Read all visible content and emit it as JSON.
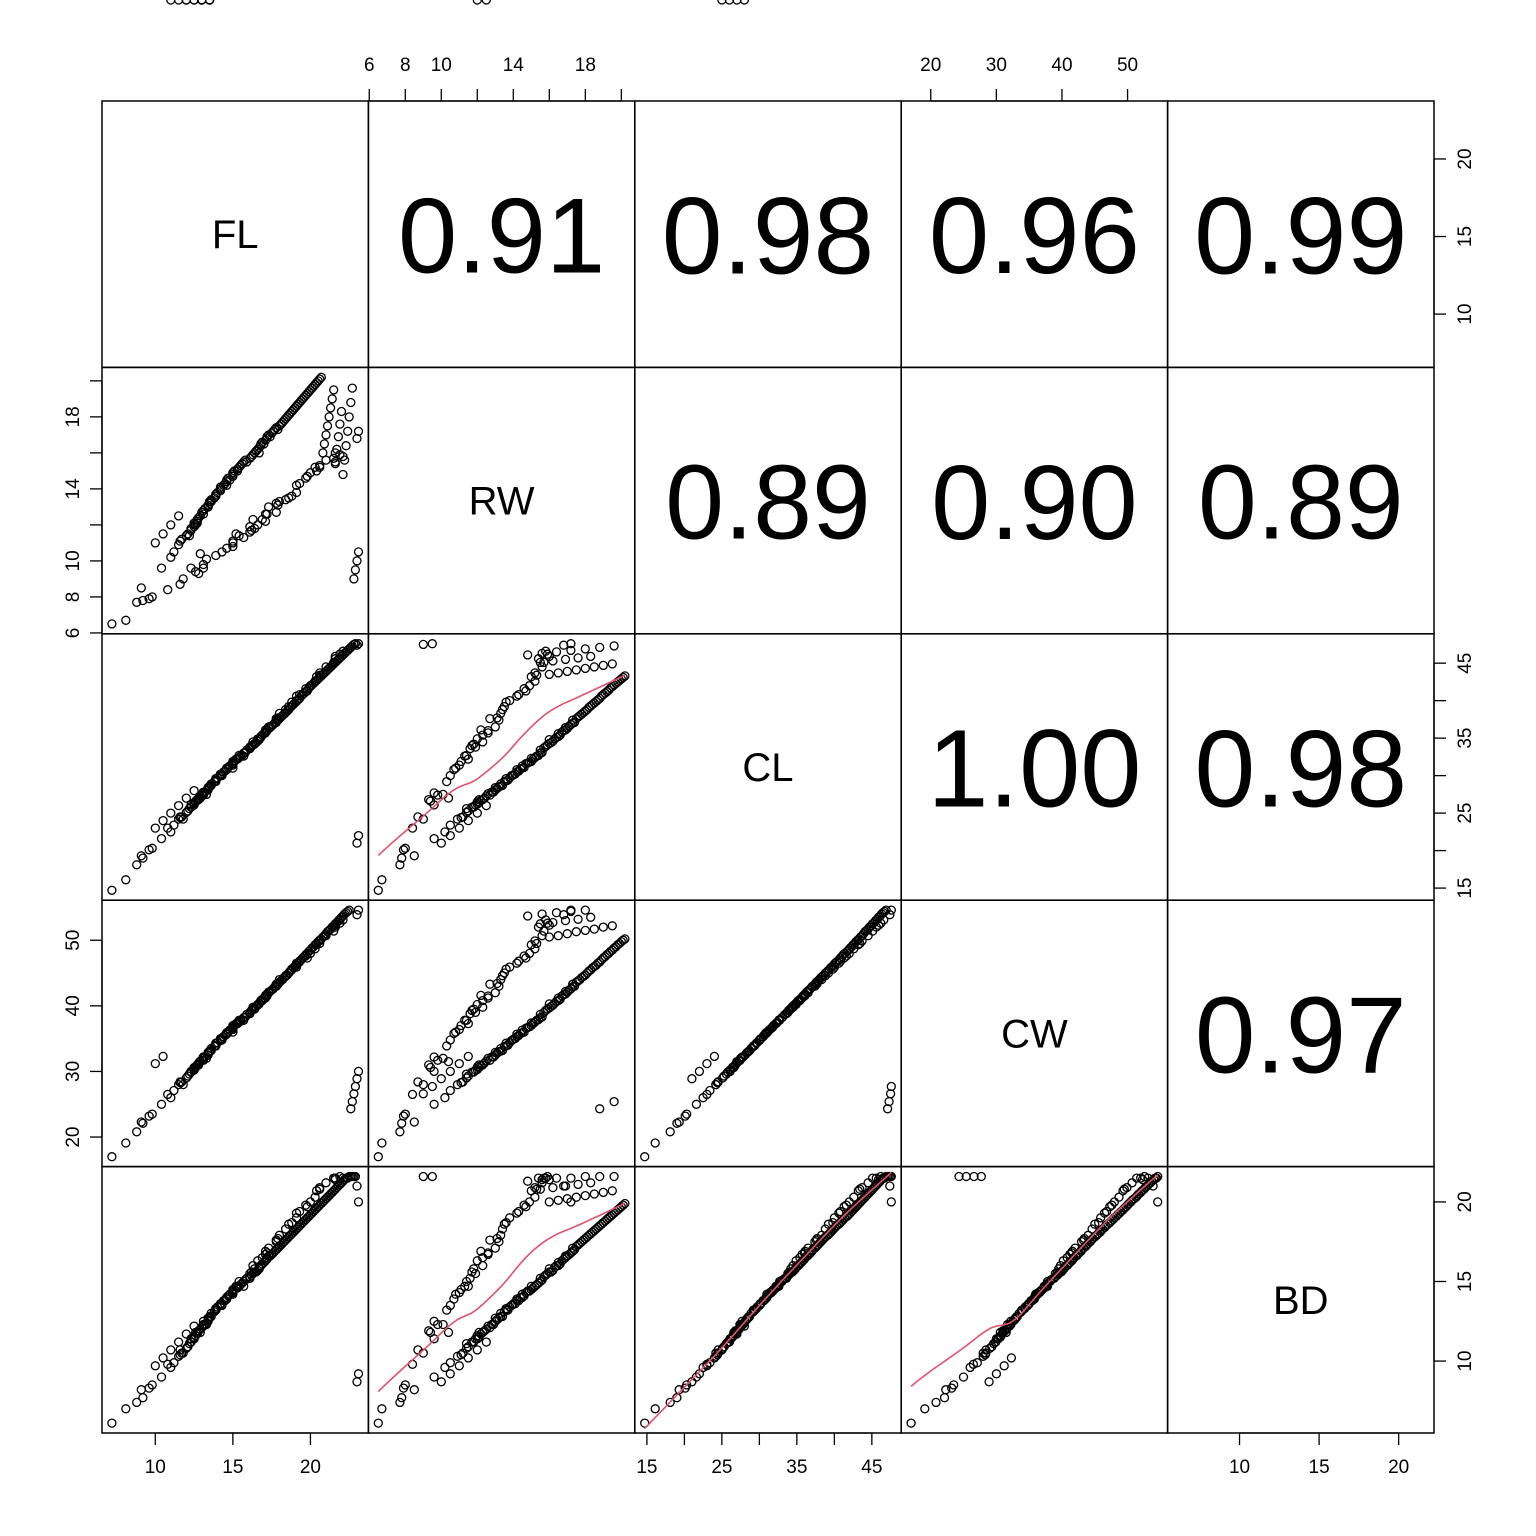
{
  "chart_data": {
    "type": "scatter",
    "layout": "scatterplot-matrix",
    "variables": [
      "FL",
      "RW",
      "CL",
      "CW",
      "BD"
    ],
    "ranges": {
      "FL": [
        7.2,
        23.1
      ],
      "RW": [
        6.5,
        20.2
      ],
      "CL": [
        14.7,
        47.6
      ],
      "CW": [
        17.0,
        54.6
      ],
      "BD": [
        6.1,
        21.6
      ]
    },
    "tick_values": {
      "FL": [
        10,
        15,
        20
      ],
      "RW": [
        6,
        8,
        10,
        12,
        14,
        16,
        18,
        20
      ],
      "CL": [
        15,
        20,
        25,
        30,
        35,
        40,
        45
      ],
      "CW": [
        20,
        30,
        40,
        50
      ],
      "BD": [
        10,
        15,
        20
      ]
    },
    "tick_labels": {
      "FL": [
        "10",
        "15",
        "20"
      ],
      "RW": [
        "6",
        "8",
        "10",
        "",
        "14",
        "",
        "18",
        ""
      ],
      "CL": [
        "15",
        "",
        "25",
        "",
        "35",
        "",
        "45"
      ],
      "CW": [
        "20",
        "30",
        "40",
        "50"
      ],
      "BD": [
        "10",
        "15",
        "20"
      ]
    },
    "correlations": [
      {
        "row": "FL",
        "col": "RW",
        "value": "0.91"
      },
      {
        "row": "FL",
        "col": "CL",
        "value": "0.98"
      },
      {
        "row": "FL",
        "col": "CW",
        "value": "0.96"
      },
      {
        "row": "FL",
        "col": "BD",
        "value": "0.99"
      },
      {
        "row": "RW",
        "col": "CL",
        "value": "0.89"
      },
      {
        "row": "RW",
        "col": "CW",
        "value": "0.90"
      },
      {
        "row": "RW",
        "col": "BD",
        "value": "0.89"
      },
      {
        "row": "CL",
        "col": "CW",
        "value": "1.00"
      },
      {
        "row": "CL",
        "col": "BD",
        "value": "0.98"
      },
      {
        "row": "CW",
        "col": "BD",
        "value": "0.97"
      }
    ],
    "lower_panels": "scatter with smoothed fit line",
    "point_style": "open circle, black",
    "smooth_color": "#DF536B",
    "n_points": 200,
    "sample_data": {
      "FL": [
        8.1,
        8.8,
        9.2,
        9.6,
        9.8,
        10.8,
        11.6,
        11.8,
        12.3,
        12.6,
        12.8,
        12.9,
        13.1,
        13.1,
        13.3,
        13.9,
        14.3,
        14.6,
        15.0,
        15.0,
        15.0,
        15.2,
        15.4,
        15.7,
        16.1,
        16.1,
        16.2,
        16.3,
        16.4,
        16.6,
        16.9,
        17.1,
        17.1,
        17.2,
        17.3,
        17.8,
        17.8,
        17.9,
        18.0,
        18.4,
        18.6,
        18.8,
        19.1,
        19.1,
        19.3,
        19.7,
        19.8,
        20.0,
        20.3,
        20.4,
        20.6,
        20.6,
        21.0,
        21.5,
        21.6,
        21.6,
        21.9,
        22.1,
        23.0,
        23.1,
        7.2,
        9.1,
        10.4,
        11.0,
        11.2,
        11.5,
        11.6,
        11.7,
        12.0,
        12.1,
        12.2,
        12.3,
        12.3,
        12.5,
        12.5,
        12.5,
        12.6,
        12.7,
        12.7,
        12.7,
        12.8,
        12.9,
        13.0,
        13.1,
        13.1,
        13.2,
        13.4,
        13.4,
        13.4,
        13.5,
        13.5,
        13.6,
        13.6,
        13.8,
        13.9,
        13.9,
        13.9,
        14.0,
        14.2,
        14.2,
        14.2,
        14.4,
        14.5,
        14.6,
        14.6,
        14.6,
        14.7,
        14.8,
        15.0,
        15.0,
        15.0,
        15.1,
        15.3,
        15.3,
        15.4,
        15.5,
        15.6,
        15.7,
        15.8,
        15.9,
        16.1,
        16.2,
        16.3,
        16.4,
        16.5,
        16.6,
        16.7,
        16.7,
        16.8,
        16.8,
        16.9,
        17.0,
        17.1,
        17.2,
        17.2,
        17.3,
        17.4,
        17.5,
        17.6,
        17.7,
        17.8,
        17.9,
        18.0,
        18.1,
        18.2,
        18.3,
        18.4,
        18.5,
        18.6,
        18.7,
        18.8,
        18.9,
        19.0,
        19.1,
        19.2,
        19.3,
        19.4,
        19.5,
        19.6,
        19.7,
        19.8,
        19.9,
        20.0,
        20.1,
        20.2,
        20.3,
        20.4,
        20.5,
        20.6,
        20.7,
        20.8,
        20.9,
        21.0,
        21.1,
        21.2,
        21.3,
        21.4,
        21.5,
        21.6,
        21.7,
        21.8,
        21.9,
        22.0,
        22.1,
        22.2,
        22.3,
        22.4,
        22.5,
        22.6,
        22.7,
        22.8,
        22.9,
        23.0,
        23.1,
        10.0,
        10.5,
        11.0,
        11.5,
        12.0,
        12.5,
        13.0,
        13.5
      ],
      "RW": [
        6.7,
        7.7,
        7.8,
        7.9,
        8.0,
        8.4,
        8.7,
        9.0,
        9.6,
        9.4,
        9.3,
        10.4,
        9.6,
        9.8,
        10.1,
        10.3,
        10.5,
        10.7,
        10.8,
        11.0,
        11.1,
        11.5,
        11.4,
        11.3,
        11.9,
        11.6,
        11.7,
        12.3,
        11.8,
        12.0,
        12.3,
        12.6,
        12.2,
        12.6,
        13.0,
        12.7,
        13.2,
        13.1,
        13.3,
        13.4,
        13.5,
        13.6,
        13.8,
        14.2,
        14.3,
        14.6,
        14.7,
        14.9,
        15.2,
        15.0,
        15.3,
        15.2,
        15.6,
        15.7,
        15.4,
        16.0,
        15.9,
        15.8,
        16.8,
        17.2,
        6.5,
        8.5,
        9.6,
        10.2,
        10.5,
        10.9,
        11.1,
        11.2,
        11.4,
        11.5,
        11.4,
        11.7,
        11.8,
        11.9,
        12.0,
        12.1,
        12.0,
        12.2,
        12.3,
        12.1,
        12.4,
        12.5,
        12.7,
        12.6,
        12.8,
        12.9,
        13.0,
        13.1,
        13.0,
        13.2,
        13.3,
        13.4,
        13.3,
        13.5,
        13.6,
        13.7,
        13.6,
        13.8,
        13.9,
        14.0,
        14.1,
        14.2,
        14.3,
        14.2,
        14.4,
        14.5,
        14.6,
        14.5,
        14.7,
        14.8,
        14.9,
        15.0,
        15.1,
        15.0,
        15.2,
        15.3,
        15.4,
        15.5,
        15.6,
        15.5,
        15.7,
        15.8,
        15.9,
        16.0,
        16.1,
        16.2,
        16.0,
        16.3,
        16.4,
        16.5,
        16.6,
        16.5,
        16.7,
        16.8,
        16.9,
        17.0,
        16.9,
        17.1,
        17.2,
        17.3,
        17.4,
        17.3,
        17.5,
        17.6,
        17.7,
        17.8,
        17.9,
        18.0,
        18.1,
        18.2,
        18.3,
        18.4,
        18.5,
        18.6,
        18.7,
        18.8,
        18.9,
        19.0,
        19.1,
        19.2,
        19.3,
        19.4,
        19.5,
        19.6,
        19.7,
        19.8,
        19.9,
        20.0,
        20.1,
        20.2,
        16.0,
        16.5,
        17.0,
        17.5,
        18.0,
        18.5,
        19.0,
        19.5,
        15.5,
        16.2,
        16.9,
        17.6,
        18.3,
        14.8,
        15.6,
        16.4,
        17.2,
        18.0,
        18.8,
        19.6,
        9.0,
        9.5,
        10.0,
        10.5,
        11.0,
        11.5,
        12.0,
        12.5
      ],
      "CL": [
        16.1,
        18.1,
        19.0,
        20.1,
        20.3,
        23.0,
        24.5,
        24.2,
        26.1,
        26.6,
        26.8,
        27.0,
        27.7,
        27.4,
        27.5,
        29.2,
        30.0,
        30.8,
        31.0,
        31.4,
        31.9,
        32.2,
        32.7,
        32.6,
        33.8,
        33.6,
        34.0,
        34.5,
        34.2,
        34.9,
        35.4,
        35.7,
        36.1,
        36.0,
        36.5,
        37.6,
        37.4,
        37.7,
        38.3,
        38.8,
        39.2,
        39.8,
        40.0,
        40.6,
        40.8,
        41.6,
        41.3,
        42.0,
        42.6,
        43.2,
        43.4,
        43.7,
        44.5,
        45.1,
        45.6,
        45.9,
        46.2,
        46.6,
        47.4,
        47.6,
        14.7,
        19.3,
        21.6,
        22.5,
        23.4,
        24.2,
        24.4,
        24.5,
        25.1,
        25.3,
        25.6,
        25.8,
        25.8,
        26.1,
        26.2,
        26.4,
        26.5,
        26.7,
        26.8,
        26.8,
        27.0,
        27.3,
        27.4,
        27.6,
        27.8,
        27.8,
        28.1,
        28.3,
        28.4,
        28.5,
        28.6,
        28.7,
        28.9,
        29.2,
        29.3,
        29.4,
        29.6,
        29.7,
        30.0,
        30.1,
        30.2,
        30.5,
        30.6,
        30.8,
        30.9,
        31.0,
        31.1,
        31.3,
        31.6,
        31.7,
        31.8,
        31.9,
        32.2,
        32.3,
        32.4,
        32.6,
        32.7,
        33.0,
        33.1,
        33.4,
        33.7,
        33.9,
        34.1,
        34.3,
        34.4,
        34.6,
        34.8,
        34.9,
        35.1,
        35.2,
        35.4,
        35.6,
        35.8,
        36.0,
        36.1,
        36.3,
        36.4,
        36.6,
        36.8,
        37.0,
        37.1,
        37.4,
        37.6,
        37.8,
        38.0,
        38.2,
        38.4,
        38.6,
        38.8,
        39.1,
        39.3,
        39.5,
        39.7,
        39.9,
        40.1,
        40.3,
        40.6,
        40.8,
        41.0,
        41.2,
        41.4,
        41.7,
        41.9,
        42.1,
        42.3,
        42.5,
        42.7,
        42.9,
        43.1,
        43.3,
        43.5,
        43.7,
        43.9,
        44.1,
        44.3,
        44.5,
        44.7,
        44.9,
        45.1,
        45.3,
        45.5,
        45.7,
        45.9,
        46.1,
        46.3,
        46.5,
        46.7,
        46.9,
        47.1,
        47.3,
        47.5,
        47.6,
        21.0,
        22.0,
        23.0,
        24.0,
        25.0,
        26.0,
        27.0,
        28.0
      ],
      "CW": [
        19.1,
        20.8,
        22.1,
        23.2,
        23.5,
        26.5,
        28.4,
        28.0,
        30.0,
        30.6,
        31.0,
        31.5,
        32.2,
        31.7,
        32.0,
        33.9,
        34.8,
        35.8,
        36.0,
        36.4,
        37.0,
        37.3,
        37.8,
        37.8,
        39.0,
        38.8,
        39.3,
        39.8,
        39.5,
        40.2,
        40.8,
        41.2,
        41.6,
        41.5,
        42.0,
        43.3,
        43.0,
        43.4,
        44.0,
        44.6,
        45.0,
        45.6,
        45.9,
        46.5,
        46.8,
        47.6,
        47.3,
        48.0,
        48.7,
        49.3,
        49.5,
        49.9,
        50.7,
        51.4,
        52.0,
        52.3,
        52.6,
        53.1,
        53.9,
        54.6,
        17.0,
        22.3,
        25.0,
        26.0,
        27.1,
        28.0,
        28.3,
        28.4,
        29.0,
        29.3,
        29.6,
        29.9,
        29.9,
        30.2,
        30.3,
        30.6,
        30.7,
        30.9,
        31.0,
        31.0,
        31.3,
        31.6,
        31.7,
        32.0,
        32.2,
        32.2,
        32.5,
        32.8,
        32.9,
        33.0,
        33.1,
        33.2,
        33.5,
        33.8,
        33.9,
        34.0,
        34.3,
        34.4,
        34.7,
        34.9,
        35.0,
        35.3,
        35.5,
        35.7,
        35.8,
        35.9,
        36.0,
        36.3,
        36.6,
        36.7,
        36.8,
        37.0,
        37.3,
        37.4,
        37.5,
        37.8,
        37.9,
        38.2,
        38.3,
        38.7,
        39.0,
        39.3,
        39.5,
        39.7,
        39.9,
        40.1,
        40.3,
        40.4,
        40.7,
        40.8,
        41.0,
        41.2,
        41.5,
        41.7,
        41.8,
        42.1,
        42.2,
        42.4,
        42.6,
        42.9,
        43.0,
        43.3,
        43.6,
        43.8,
        44.0,
        44.3,
        44.5,
        44.7,
        45.0,
        45.3,
        45.5,
        45.8,
        46.0,
        46.2,
        46.5,
        46.7,
        47.0,
        47.3,
        47.5,
        47.8,
        48.0,
        48.3,
        48.5,
        48.8,
        49.0,
        49.3,
        49.5,
        49.8,
        50.0,
        50.2,
        50.5,
        50.7,
        51.0,
        51.3,
        51.5,
        51.7,
        52.0,
        52.2,
        52.5,
        52.7,
        53.0,
        53.2,
        53.5,
        53.7,
        54.0,
        54.2,
        54.4,
        54.6,
        24.3,
        25.4,
        26.6,
        27.7,
        28.9,
        30.0,
        31.2,
        32.3
      ],
      "BD": [
        7.0,
        7.4,
        7.7,
        8.3,
        8.5,
        9.8,
        10.7,
        10.5,
        11.4,
        11.8,
        11.9,
        11.8,
        12.5,
        12.3,
        12.3,
        13.2,
        13.5,
        13.9,
        14.2,
        14.3,
        14.5,
        14.7,
        15.0,
        14.7,
        15.5,
        15.2,
        15.6,
        16.0,
        15.8,
        16.3,
        16.5,
        16.7,
        16.9,
        16.8,
        17.1,
        17.6,
        17.5,
        17.7,
        17.9,
        18.3,
        18.6,
        18.7,
        19.0,
        19.3,
        19.4,
        19.8,
        19.7,
        20.0,
        20.3,
        20.7,
        20.8,
        20.9,
        21.2,
        21.5,
        21.5,
        21.4,
        21.6,
        21.5,
        21.0,
        20.0,
        6.1,
        8.2,
        9.0,
        9.6,
        9.9,
        10.3,
        10.4,
        10.5,
        10.8,
        10.9,
        11.1,
        11.2,
        11.2,
        11.4,
        11.4,
        11.5,
        11.6,
        11.7,
        11.8,
        11.8,
        11.9,
        12.0,
        12.1,
        12.2,
        12.3,
        12.3,
        12.5,
        12.6,
        12.7,
        12.7,
        12.8,
        12.8,
        13.0,
        13.1,
        13.2,
        13.2,
        13.3,
        13.4,
        13.5,
        13.6,
        13.6,
        13.8,
        13.8,
        13.9,
        14.0,
        14.0,
        14.1,
        14.2,
        14.3,
        14.4,
        14.4,
        14.5,
        14.6,
        14.7,
        14.7,
        14.8,
        14.9,
        15.0,
        15.1,
        15.2,
        15.3,
        15.4,
        15.5,
        15.6,
        15.6,
        15.7,
        15.8,
        15.9,
        16.0,
        16.0,
        16.1,
        16.2,
        16.3,
        16.4,
        16.5,
        16.6,
        16.6,
        16.7,
        16.8,
        16.9,
        17.0,
        17.1,
        17.2,
        17.3,
        17.4,
        17.5,
        17.6,
        17.7,
        17.8,
        17.9,
        18.0,
        18.1,
        18.2,
        18.3,
        18.4,
        18.5,
        18.6,
        18.7,
        18.8,
        18.9,
        19.0,
        19.1,
        19.2,
        19.3,
        19.4,
        19.5,
        19.6,
        19.7,
        19.8,
        19.9,
        20.0,
        20.1,
        20.2,
        20.3,
        20.4,
        20.5,
        20.6,
        20.7,
        20.8,
        20.9,
        21.0,
        21.1,
        21.2,
        21.3,
        21.4,
        21.5,
        21.5,
        21.6,
        21.6,
        21.6,
        21.6,
        21.6,
        8.7,
        9.2,
        9.7,
        10.2,
        10.7,
        11.2,
        11.7,
        12.2
      ]
    }
  }
}
